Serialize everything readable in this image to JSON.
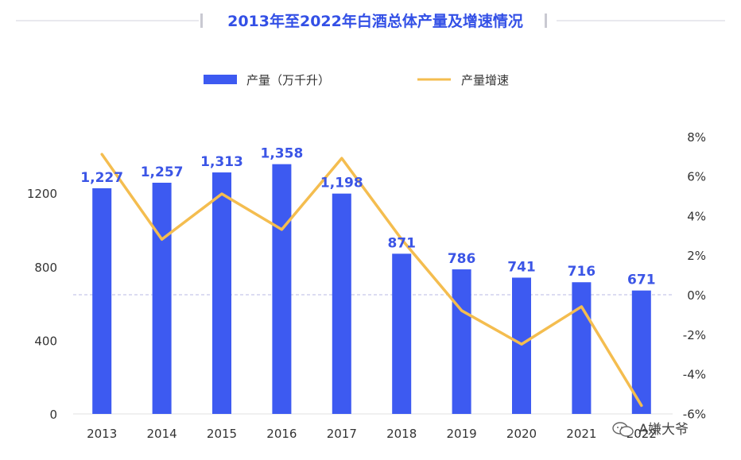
{
  "title": "2013年至2022年白酒总体产量及增速情况",
  "legend": {
    "bar_label": "产量（万千升）",
    "line_label": "产量增速"
  },
  "colors": {
    "bar": "#3d5af1",
    "line": "#f4bd4f",
    "title": "#3350e6",
    "zero_line": "#b9b9e6"
  },
  "watermark": {
    "text": "A嫌大爷",
    "icon": "wechat-icon"
  },
  "chart_data": {
    "type": "bar",
    "categories": [
      "2013",
      "2014",
      "2015",
      "2016",
      "2017",
      "2018",
      "2019",
      "2020",
      "2021",
      "2022"
    ],
    "series": [
      {
        "name": "产量（万千升）",
        "type": "bar",
        "axis": "left",
        "values": [
          1227,
          1257,
          1313,
          1358,
          1198,
          871,
          786,
          741,
          716,
          671
        ],
        "labels": [
          "1,227",
          "1,257",
          "1,313",
          "1,358",
          "1,198",
          "871",
          "786",
          "741",
          "716",
          "671"
        ]
      },
      {
        "name": "产量增速",
        "type": "line",
        "axis": "right",
        "values": [
          7.1,
          2.8,
          5.1,
          3.3,
          6.9,
          2.8,
          -0.8,
          -2.5,
          -0.6,
          -5.6
        ]
      }
    ],
    "left_axis": {
      "ylim": [
        0,
        1400
      ],
      "ticks": [
        0,
        400,
        800,
        1200
      ]
    },
    "right_axis": {
      "ylim": [
        -6,
        8
      ],
      "ticks": [
        -6,
        -4,
        -2,
        0,
        2,
        4,
        6,
        8
      ],
      "tick_labels": [
        "-6%",
        "-4%",
        "-2%",
        "0%",
        "2%",
        "4%",
        "6%",
        "8%"
      ]
    },
    "legend_position": "top"
  }
}
